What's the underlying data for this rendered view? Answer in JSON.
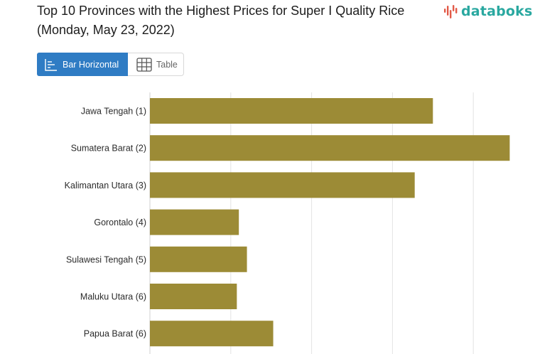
{
  "header": {
    "title": "Top 10 Provinces with the Highest Prices for Super I Quality Rice (Monday, May 23, 2022)"
  },
  "logo": {
    "text": "databoks",
    "colors": {
      "text": "#2aa8a0",
      "mark": "#e25a48"
    }
  },
  "view_toggle": {
    "bar_label": "Bar Horizontal",
    "table_label": "Table",
    "active": "bar",
    "active_color": "#2f7cc4"
  },
  "chart_data": {
    "type": "bar",
    "orientation": "horizontal",
    "categories": [
      "Jawa Tengah (1)",
      "Sumatera Barat (2)",
      "Kalimantan Utara (3)",
      "Gorontalo (4)",
      "Sulawesi Tengah (5)",
      "Maluku Utara (6)",
      "Papua Barat (6)"
    ],
    "values": [
      14000,
      17800,
      13100,
      4400,
      4800,
      4300,
      6100
    ],
    "xlim": [
      0,
      20000
    ],
    "grid": true,
    "bar_color": "#9c8b36"
  }
}
